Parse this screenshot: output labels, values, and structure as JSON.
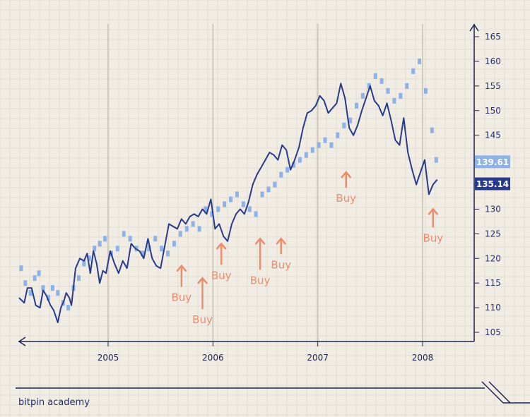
{
  "footer": {
    "brand": "bitpin academy"
  },
  "colors": {
    "background": "#f1ede4",
    "grid_minor": "#e2ddd2",
    "grid_major": "#cfcac0",
    "axis": "#1f2450",
    "price_line": "#283a8c",
    "dots": "#8fb2e6",
    "buy": "#ec8c6c",
    "badge_light": "#8fb2e6",
    "badge_dark": "#283a8c"
  },
  "chart_data": {
    "type": "line",
    "x_ticks": [
      {
        "label": "2005",
        "x": 2005.0
      },
      {
        "label": "2006",
        "x": 2006.0
      },
      {
        "label": "2007",
        "x": 2007.0
      },
      {
        "label": "2008",
        "x": 2008.0
      }
    ],
    "y_ticks": [
      105,
      110,
      115,
      120,
      125,
      130,
      135,
      140,
      145,
      150,
      155,
      160,
      165
    ],
    "xlim": [
      2004.15,
      2008.5
    ],
    "ylim": [
      103,
      167
    ],
    "series": [
      {
        "style": "line",
        "x": [
          2004.15,
          2004.2,
          2004.23,
          2004.27,
          2004.31,
          2004.35,
          2004.38,
          2004.41,
          2004.45,
          2004.48,
          2004.52,
          2004.55,
          2004.58,
          2004.6,
          2004.63,
          2004.65,
          2004.69,
          2004.73,
          2004.77,
          2004.8,
          2004.83,
          2004.86,
          2004.89,
          2004.92,
          2004.95,
          2004.98,
          2005.02,
          2005.06,
          2005.1,
          2005.14,
          2005.18,
          2005.22,
          2005.26,
          2005.3,
          2005.34,
          2005.38,
          2005.42,
          2005.46,
          2005.5,
          2005.54,
          2005.58,
          2005.62,
          2005.66,
          2005.7,
          2005.74,
          2005.78,
          2005.82,
          2005.86,
          2005.9,
          2005.94,
          2005.98,
          2006.02,
          2006.06,
          2006.1,
          2006.14,
          2006.18,
          2006.22,
          2006.26,
          2006.3,
          2006.34,
          2006.38,
          2006.42,
          2006.46,
          2006.5,
          2006.54,
          2006.58,
          2006.62,
          2006.66,
          2006.7,
          2006.74,
          2006.78,
          2006.82,
          2006.86,
          2006.9,
          2006.94,
          2006.98,
          2007.02,
          2007.06,
          2007.1,
          2007.14,
          2007.18,
          2007.22,
          2007.26,
          2007.3,
          2007.34,
          2007.38,
          2007.42,
          2007.46,
          2007.5,
          2007.54,
          2007.58,
          2007.62,
          2007.66,
          2007.7,
          2007.74,
          2007.78,
          2007.82,
          2007.86,
          2007.9,
          2007.94,
          2007.98,
          2008.02,
          2008.06,
          2008.1,
          2008.14
        ],
        "values": [
          112,
          111,
          114,
          114,
          110.5,
          110,
          113.5,
          112.5,
          110.5,
          109.5,
          107,
          110,
          111.5,
          113,
          112,
          110.5,
          118,
          120,
          119.5,
          121,
          117,
          121.5,
          119,
          115,
          117.5,
          117,
          121.5,
          119,
          117,
          119.5,
          118,
          123,
          122,
          121.5,
          120,
          124,
          120,
          118.5,
          118,
          122.5,
          127,
          126.5,
          126,
          128,
          127,
          128.5,
          129,
          128.5,
          130,
          129,
          132,
          126,
          127,
          124.5,
          123.5,
          127,
          129,
          130,
          129,
          131.5,
          135,
          137,
          138.5,
          140,
          141.5,
          141,
          140,
          143,
          142,
          138,
          140,
          142.5,
          146.5,
          149.5,
          150,
          151,
          153,
          152,
          149.5,
          150.5,
          151.5,
          155.5,
          152.5,
          146.5,
          145,
          147,
          150,
          152.5,
          155,
          152,
          151,
          149,
          151.5,
          148,
          144,
          143,
          148.5,
          141.5,
          138,
          135,
          137.5,
          140,
          133,
          135,
          136
        ]
      },
      {
        "style": "dots",
        "x": [
          2004.17,
          2004.21,
          2004.26,
          2004.3,
          2004.34,
          2004.38,
          2004.43,
          2004.47,
          2004.52,
          2004.57,
          2004.62,
          2004.67,
          2004.72,
          2004.77,
          2004.82,
          2004.87,
          2004.92,
          2004.97,
          2005.03,
          2005.09,
          2005.15,
          2005.21,
          2005.27,
          2005.33,
          2005.39,
          2005.45,
          2005.51,
          2005.57,
          2005.63,
          2005.69,
          2005.75,
          2005.81,
          2005.87,
          2005.93,
          2005.99,
          2006.05,
          2006.11,
          2006.17,
          2006.23,
          2006.29,
          2006.35,
          2006.41,
          2006.47,
          2006.53,
          2006.59,
          2006.65,
          2006.71,
          2006.77,
          2006.83,
          2006.89,
          2006.95,
          2007.01,
          2007.07,
          2007.13,
          2007.19,
          2007.25,
          2007.31,
          2007.37,
          2007.43,
          2007.49,
          2007.55,
          2007.61,
          2007.67,
          2007.73,
          2007.79,
          2007.85,
          2007.91,
          2007.97,
          2008.03,
          2008.09,
          2008.13
        ],
        "values": [
          118,
          115,
          113,
          116,
          117,
          114,
          112,
          114,
          113,
          111,
          110,
          114,
          116,
          119,
          120,
          122,
          123,
          124,
          121,
          122,
          125,
          124,
          122,
          121,
          122,
          124,
          122,
          121,
          123,
          125,
          126,
          127,
          126,
          130,
          129,
          130,
          131,
          132,
          133,
          131,
          130,
          129,
          133,
          134,
          135,
          137,
          138,
          139,
          140,
          141,
          142,
          143,
          144,
          143,
          145,
          147,
          148,
          151,
          153,
          155,
          157,
          156,
          154,
          152,
          153,
          155,
          158,
          160,
          154,
          146,
          140
        ]
      }
    ],
    "annotations": [
      {
        "label": "Buy",
        "x": 2005.7,
        "y": 118.5,
        "id": "buy-1"
      },
      {
        "label": "Buy",
        "x": 2005.9,
        "y": 116.0,
        "id": "buy-2"
      },
      {
        "label": "Buy",
        "x": 2006.08,
        "y": 123.0,
        "id": "buy-3"
      },
      {
        "label": "Buy",
        "x": 2006.45,
        "y": 124.0,
        "id": "buy-4"
      },
      {
        "label": "Buy",
        "x": 2006.65,
        "y": 124.0,
        "id": "buy-5"
      },
      {
        "label": "Buy",
        "x": 2007.27,
        "y": 137.5,
        "id": "buy-6"
      },
      {
        "label": "Buy",
        "x": 2008.1,
        "y": 130.0,
        "id": "buy-7"
      }
    ],
    "price_labels": [
      {
        "value": "139.61",
        "y": 139.61,
        "style": "light"
      },
      {
        "value": "135.14",
        "y": 135.14,
        "style": "dark"
      }
    ],
    "grid": true
  }
}
